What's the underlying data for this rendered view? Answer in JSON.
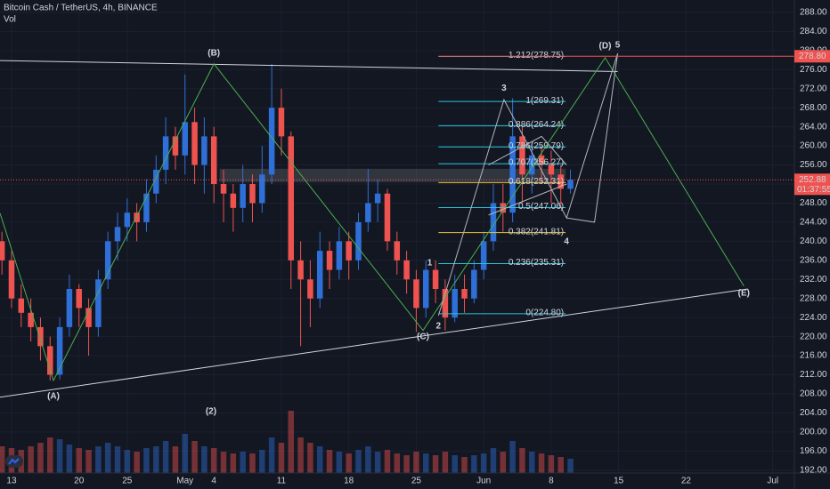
{
  "chart_data": {
    "type": "candlestick",
    "title": "Bitcoin Cash / TetherUS, 4h, BINANCE",
    "volume_label": "Vol",
    "x": [
      -1,
      0,
      1,
      2,
      3,
      4,
      5,
      6,
      7,
      8,
      9,
      10,
      11,
      12,
      13,
      14,
      15,
      16,
      17,
      18,
      19,
      20,
      21,
      22,
      23,
      24,
      25,
      26,
      27,
      28,
      29,
      30,
      31,
      32,
      33,
      34,
      35,
      36,
      37,
      38,
      39,
      40,
      41,
      42,
      43,
      44,
      45,
      46,
      47,
      48,
      49,
      50,
      51,
      52,
      53,
      54,
      55,
      56,
      57,
      58
    ],
    "open": [
      240,
      236,
      228,
      225,
      222,
      218,
      212,
      222,
      230,
      226,
      222,
      232,
      240,
      243,
      246,
      244,
      250,
      255,
      262,
      258,
      265,
      256,
      262,
      252,
      250,
      247,
      252,
      248,
      254,
      268,
      262,
      236,
      232,
      228,
      238,
      234,
      240,
      236,
      244,
      248,
      250,
      240,
      236,
      232,
      226,
      234,
      230,
      224,
      230,
      228,
      234,
      240,
      248,
      246,
      262,
      254,
      258,
      256,
      254,
      251
    ],
    "high": [
      242,
      238,
      231,
      228,
      224,
      220,
      224,
      233,
      231,
      228,
      234,
      242,
      246,
      249,
      248,
      253,
      258,
      266,
      264,
      275,
      268,
      266,
      264,
      255,
      252,
      256,
      254,
      260,
      277.2,
      272,
      263,
      240,
      236,
      242,
      240,
      243,
      242,
      246,
      255.2,
      253,
      251,
      242,
      238,
      234,
      236,
      236,
      232,
      233,
      233,
      236,
      242,
      252,
      252,
      270,
      264,
      261,
      260,
      259,
      256,
      255
    ],
    "low": [
      233,
      226,
      222,
      219,
      215,
      210.8,
      211,
      220,
      222,
      216,
      220,
      230,
      236,
      240,
      240,
      242,
      248,
      252,
      255,
      254,
      252,
      250,
      248,
      244,
      242,
      244,
      244,
      246,
      252,
      258,
      230,
      218,
      222,
      226,
      230,
      232,
      232,
      234,
      242,
      244,
      238,
      233,
      229,
      221,
      224,
      227,
      221.3,
      223,
      225,
      227,
      232,
      238,
      242,
      244,
      248,
      250,
      252,
      248,
      247,
      250
    ],
    "close": [
      236,
      228,
      225,
      222,
      218,
      212,
      222,
      230,
      226,
      222,
      232,
      240,
      243,
      246,
      244,
      250,
      255,
      262,
      258,
      265,
      256,
      262,
      252,
      250,
      247,
      252,
      248,
      254,
      268,
      262,
      236,
      232,
      228,
      238,
      234,
      240,
      236,
      244,
      248,
      250,
      240,
      236,
      232,
      226,
      234,
      230,
      224,
      230,
      228,
      234,
      240,
      248,
      246,
      262,
      254,
      258,
      256,
      254,
      251,
      252.88
    ],
    "volume": [
      30,
      28,
      26,
      30,
      34,
      40,
      38,
      32,
      28,
      26,
      30,
      34,
      30,
      26,
      24,
      28,
      30,
      36,
      30,
      44,
      36,
      30,
      28,
      24,
      22,
      24,
      22,
      26,
      40,
      34,
      70,
      40,
      34,
      30,
      26,
      24,
      22,
      26,
      30,
      24,
      26,
      22,
      20,
      24,
      22,
      20,
      24,
      20,
      18,
      20,
      22,
      28,
      24,
      36,
      28,
      24,
      22,
      20,
      18,
      16
    ],
    "up_color": "#2f6fd8",
    "down_color": "#ef5350",
    "xlim": [
      -1.2,
      81.24
    ],
    "xticks": [
      {
        "value": 0,
        "label": "13"
      },
      {
        "value": 7,
        "label": "20"
      },
      {
        "value": 12,
        "label": "25"
      },
      {
        "value": 18,
        "label": "May"
      },
      {
        "value": 21,
        "label": "4"
      },
      {
        "value": 28,
        "label": "11"
      },
      {
        "value": 35,
        "label": "18"
      },
      {
        "value": 42,
        "label": "25"
      },
      {
        "value": 49,
        "label": "Jun"
      },
      {
        "value": 56,
        "label": "8"
      },
      {
        "value": 63,
        "label": "15"
      },
      {
        "value": 70,
        "label": "22"
      },
      {
        "value": 79,
        "label": "Jul"
      }
    ],
    "ylim": [
      191.4,
      290.6
    ],
    "yticks": [
      {
        "value": 192,
        "label": "192.00"
      },
      {
        "value": 196,
        "label": "196.00"
      },
      {
        "value": 200,
        "label": "200.00"
      },
      {
        "value": 204,
        "label": "204.00"
      },
      {
        "value": 208,
        "label": "208.00"
      },
      {
        "value": 212,
        "label": "212.00"
      },
      {
        "value": 216,
        "label": "216.00"
      },
      {
        "value": 220,
        "label": "220.00"
      },
      {
        "value": 224,
        "label": "224.00"
      },
      {
        "value": 228,
        "label": "228.00"
      },
      {
        "value": 232,
        "label": "232.00"
      },
      {
        "value": 236,
        "label": "236.00"
      },
      {
        "value": 240,
        "label": "240.00"
      },
      {
        "value": 244,
        "label": "244.00"
      },
      {
        "value": 248,
        "label": "248.00"
      },
      {
        "value": 252,
        "label": "252.00"
      },
      {
        "value": 256,
        "label": "256.00"
      },
      {
        "value": 260,
        "label": "260.00"
      },
      {
        "value": 264,
        "label": "264.00"
      },
      {
        "value": 268,
        "label": "268.00"
      },
      {
        "value": 272,
        "label": "272.00"
      },
      {
        "value": 276,
        "label": "276.00"
      },
      {
        "value": 280,
        "label": "280.00"
      },
      {
        "value": 284,
        "label": "284.00"
      },
      {
        "value": 288,
        "label": "288.00"
      }
    ],
    "grid": true,
    "last_price": {
      "value": 252.88,
      "label": "252.88",
      "countdown": "01:37:55"
    },
    "alert_level": {
      "value": 278.8,
      "label": "278.80"
    },
    "zone": {
      "x": [
        21.6,
        57.5
      ],
      "y": [
        252.4,
        255.2
      ]
    },
    "fib_x": [
      44.3,
      57.5
    ],
    "fib_levels": [
      {
        "label": "1.212(278.75)",
        "value": 278.75,
        "color": "#26c6da"
      },
      {
        "label": "1(269.31)",
        "value": 269.31,
        "color": "#26c6da"
      },
      {
        "label": "0.886(264.24)",
        "value": 264.24,
        "color": "#26c6da"
      },
      {
        "label": "0.786(259.79)",
        "value": 259.79,
        "color": "#26c6da"
      },
      {
        "label": "0.707(256.27)",
        "value": 256.27,
        "color": "#26c6da"
      },
      {
        "label": "0.618(252.31)",
        "value": 252.31,
        "color": "#e6c23a"
      },
      {
        "label": "0.5(247.06)",
        "value": 247.06,
        "color": "#26c6da"
      },
      {
        "label": "0.382(241.81)",
        "value": 241.81,
        "color": "#e6c23a"
      },
      {
        "label": "0.236(235.31)",
        "value": 235.31,
        "color": "#26c6da"
      },
      {
        "label": "0(224.80)",
        "value": 224.8,
        "color": "#26c6da"
      }
    ],
    "lines": [
      {
        "color": "#d1d4dc",
        "points": [
          [
            -1.2,
            277.9
          ],
          [
            62.9,
            275.6
          ]
        ]
      },
      {
        "color": "#d1d4dc",
        "points": [
          [
            -1.2,
            207.3
          ],
          [
            76.4,
            230.0
          ]
        ]
      },
      {
        "color": "#4caf50",
        "points": [
          [
            -1.2,
            245.9
          ],
          [
            4.35,
            210.8
          ],
          [
            21.0,
            277.2
          ],
          [
            42.7,
            221.3
          ],
          [
            61.6,
            278.5
          ],
          [
            76.0,
            230.6
          ]
        ]
      },
      {
        "color": "#b2b5be",
        "points": [
          [
            44.3,
            224.4
          ],
          [
            51.1,
            269.7
          ],
          [
            57.6,
            244.9
          ],
          [
            62.9,
            279.4
          ]
        ]
      },
      {
        "color": "#b2b5be",
        "points": [
          [
            49.5,
            245.5
          ],
          [
            57.6,
            252.0
          ]
        ]
      },
      {
        "color": "#b2b5be",
        "points": [
          [
            49.5,
            256.0
          ],
          [
            55.0,
            262.0
          ],
          [
            57.6,
            256.0
          ]
        ]
      },
      {
        "color": "#b2b5be",
        "points": [
          [
            57.6,
            244.9
          ],
          [
            60.5,
            244.0
          ],
          [
            62.9,
            279.4
          ]
        ]
      }
    ],
    "annotations": [
      {
        "text": "(A)",
        "x": 4.35,
        "y": 207.5,
        "color": "#4caf50"
      },
      {
        "text": "(B)",
        "x": 21.0,
        "y": 279.4,
        "color": "#4caf50"
      },
      {
        "text": "(C)",
        "x": 42.7,
        "y": 220.0,
        "color": "#4caf50"
      },
      {
        "text": "(D)",
        "x": 61.6,
        "y": 280.9,
        "color": "#4caf50"
      },
      {
        "text": "(E)",
        "x": 76.0,
        "y": 229.1,
        "color": "#4caf50"
      },
      {
        "text": "(2)",
        "x": 20.7,
        "y": 204.3,
        "color": "#d1d4dc"
      },
      {
        "text": "1",
        "x": 43.4,
        "y": 235.4,
        "color": "#d1d4dc"
      },
      {
        "text": "2",
        "x": 44.3,
        "y": 222.2,
        "color": "#d1d4dc"
      },
      {
        "text": "3",
        "x": 51.1,
        "y": 272.1,
        "color": "#d1d4dc"
      },
      {
        "text": "4",
        "x": 57.6,
        "y": 239.9,
        "color": "#d1d4dc"
      },
      {
        "text": "5",
        "x": 62.9,
        "y": 281.1,
        "color": "#d1d4dc"
      }
    ]
  }
}
